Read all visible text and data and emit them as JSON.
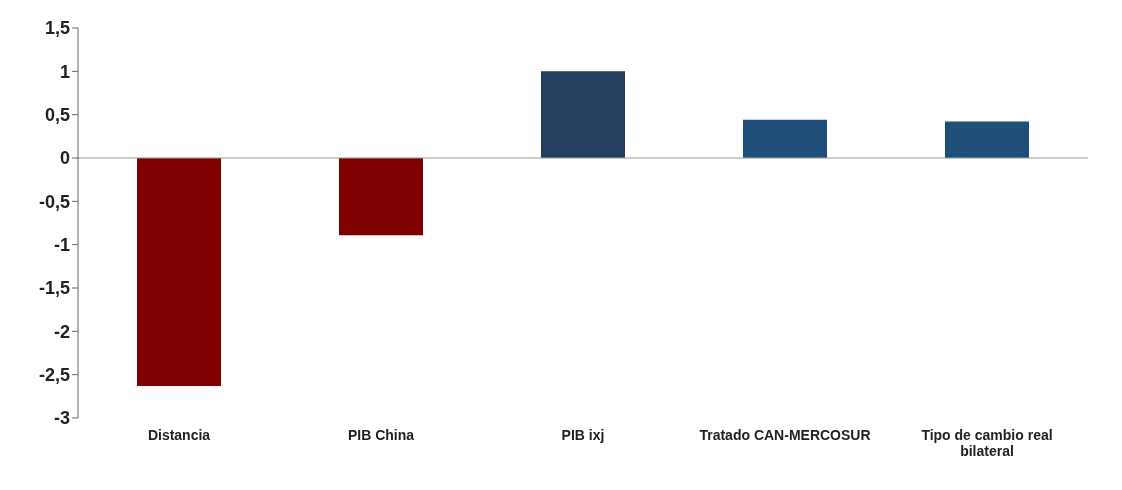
{
  "chart_data": {
    "type": "bar",
    "categories": [
      "Distancia",
      "PIB China",
      "PIB ixj",
      "Tratado CAN-MERCOSUR",
      "Tipo de cambio real bilateral"
    ],
    "values": [
      -2.63,
      -0.89,
      1.0,
      0.44,
      0.42
    ],
    "colors": [
      "#7f0000",
      "#7f0000",
      "#243f60",
      "#1f4e79",
      "#1f4e79"
    ],
    "ylim": [
      -3,
      1.5
    ],
    "yticks": [
      {
        "value": -3,
        "label": "-3"
      },
      {
        "value": -2.5,
        "label": "-2,5"
      },
      {
        "value": -2,
        "label": "-2"
      },
      {
        "value": -1.5,
        "label": "-1,5"
      },
      {
        "value": -1,
        "label": "-1"
      },
      {
        "value": -0.5,
        "label": "-0,5"
      },
      {
        "value": 0,
        "label": "0"
      },
      {
        "value": 0.5,
        "label": "0,5"
      },
      {
        "value": 1,
        "label": "1"
      },
      {
        "value": 1.5,
        "label": "1,5"
      }
    ],
    "legend": false
  }
}
